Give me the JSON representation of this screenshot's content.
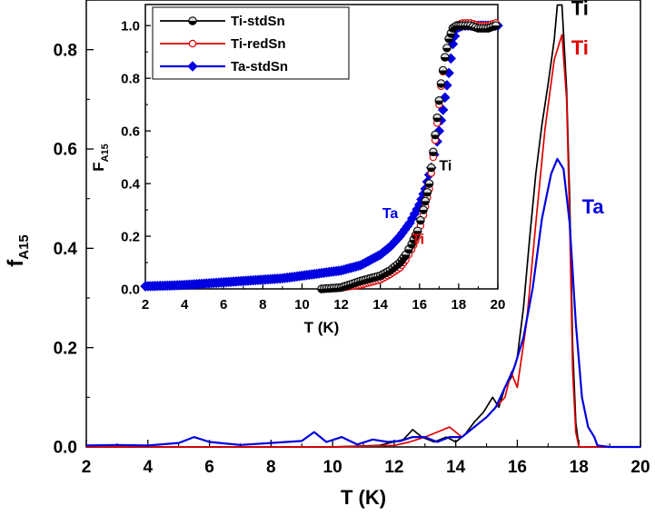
{
  "chart_data": [
    {
      "type": "line",
      "title": "",
      "xlabel": "T (K)",
      "ylabel_main": "f",
      "ylabel_sub": "A15",
      "xlim": [
        2,
        20
      ],
      "ylim": [
        0,
        0.9
      ],
      "xticks": [
        2,
        4,
        6,
        8,
        10,
        12,
        14,
        16,
        18,
        20
      ],
      "yticks": [
        0.0,
        0.2,
        0.4,
        0.6,
        0.8
      ],
      "ytick_labels": [
        "0.0",
        "0.2",
        "0.4",
        "0.6",
        "0.8"
      ],
      "series": [
        {
          "name": "Ti-stdSn",
          "color": "#000000",
          "x": [
            2,
            6,
            10,
            11.5,
            12.3,
            12.6,
            12.9,
            13.3,
            13.7,
            14.0,
            14.3,
            14.6,
            14.9,
            15.2,
            15.4,
            15.6,
            15.8,
            16.0,
            16.2,
            16.4,
            16.6,
            16.8,
            17.0,
            17.2,
            17.3,
            17.45,
            17.6,
            17.7,
            17.8,
            17.9,
            18.0,
            18.5,
            20
          ],
          "y": [
            0,
            0,
            0,
            0.003,
            0.015,
            0.035,
            0.02,
            0.01,
            0.02,
            0.01,
            0.025,
            0.05,
            0.07,
            0.1,
            0.08,
            0.12,
            0.14,
            0.18,
            0.28,
            0.42,
            0.55,
            0.65,
            0.73,
            0.82,
            0.89,
            0.89,
            0.72,
            0.5,
            0.2,
            0.05,
            0.0,
            0.0,
            0.0
          ]
        },
        {
          "name": "Ti-redSn",
          "color": "#e00000",
          "x": [
            2,
            6,
            10,
            12.0,
            12.5,
            13.0,
            13.4,
            13.8,
            14.2,
            14.6,
            15.0,
            15.3,
            15.6,
            15.8,
            16.0,
            16.3,
            16.6,
            16.9,
            17.2,
            17.45,
            17.6,
            17.7,
            17.8,
            17.9,
            18.0,
            18.5,
            20
          ],
          "y": [
            0,
            0,
            0,
            0.003,
            0.01,
            0.02,
            0.03,
            0.04,
            0.02,
            0.04,
            0.06,
            0.08,
            0.1,
            0.15,
            0.12,
            0.25,
            0.45,
            0.64,
            0.78,
            0.83,
            0.7,
            0.45,
            0.15,
            0.03,
            0.0,
            0.0,
            0.0
          ]
        },
        {
          "name": "Ta-stdSn",
          "color": "#0000e0",
          "x": [
            2,
            3,
            4,
            5,
            5.5,
            6,
            7,
            8,
            9,
            9.4,
            9.8,
            10.3,
            10.8,
            11.3,
            11.8,
            12.2,
            12.6,
            13.0,
            13.4,
            13.8,
            14.2,
            14.6,
            15.0,
            15.3,
            15.6,
            15.9,
            16.2,
            16.5,
            16.8,
            17.1,
            17.3,
            17.5,
            17.7,
            17.9,
            18.1,
            18.3,
            18.5,
            18.6,
            19.0,
            20
          ],
          "y": [
            0.003,
            0.004,
            0.003,
            0.008,
            0.02,
            0.01,
            0.004,
            0.008,
            0.012,
            0.03,
            0.01,
            0.02,
            0.005,
            0.015,
            0.01,
            0.012,
            0.02,
            0.02,
            0.01,
            0.02,
            0.02,
            0.04,
            0.06,
            0.08,
            0.12,
            0.16,
            0.22,
            0.32,
            0.46,
            0.55,
            0.58,
            0.56,
            0.45,
            0.25,
            0.1,
            0.04,
            0.02,
            0.003,
            0.0,
            0.0
          ]
        }
      ],
      "annotations": [
        {
          "text": "Ti",
          "color": "#000000",
          "x": 17.75,
          "y": 0.87
        },
        {
          "text": "Ti",
          "color": "#e00000",
          "x": 17.75,
          "y": 0.79
        },
        {
          "text": "Ta",
          "color": "#0000e0",
          "x": 18.1,
          "y": 0.47
        }
      ]
    },
    {
      "type": "scatter",
      "title": "",
      "xlabel": "T (K)",
      "ylabel_main": "F",
      "ylabel_sub": "A15",
      "xlim": [
        2,
        20
      ],
      "ylim": [
        0,
        1.08
      ],
      "xticks": [
        2,
        4,
        6,
        8,
        10,
        12,
        14,
        16,
        18,
        20
      ],
      "yticks": [
        0.0,
        0.2,
        0.4,
        0.6,
        0.8,
        1.0
      ],
      "ytick_labels": [
        "0.0",
        "0.2",
        "0.4",
        "0.6",
        "0.8",
        "1.0"
      ],
      "legend": "top-left",
      "series": [
        {
          "name": "Ti-stdSn",
          "color": "#000000",
          "marker": "half-filled-circle",
          "x": [
            11.0,
            12.0,
            12.6,
            13.0,
            13.5,
            14.0,
            14.5,
            15.0,
            15.3,
            15.6,
            15.9,
            16.2,
            16.5,
            16.7,
            16.9,
            17.1,
            17.3,
            17.5,
            17.7,
            17.9,
            18.2,
            18.6,
            19.0,
            19.5,
            19.9
          ],
          "y": [
            0.0,
            0.005,
            0.02,
            0.03,
            0.04,
            0.05,
            0.07,
            0.1,
            0.13,
            0.17,
            0.22,
            0.3,
            0.4,
            0.52,
            0.65,
            0.78,
            0.88,
            0.95,
            0.99,
            1.0,
            1.0,
            1.0,
            0.99,
            0.99,
            1.0
          ]
        },
        {
          "name": "Ti-redSn",
          "color": "#e00000",
          "marker": "open-circle",
          "x": [
            11.0,
            12.0,
            12.5,
            13.0,
            13.5,
            14.0,
            14.5,
            15.0,
            15.3,
            15.6,
            15.9,
            16.2,
            16.5,
            16.7,
            16.9,
            17.1,
            17.3,
            17.5,
            17.7,
            17.9,
            18.2,
            18.6,
            19.0,
            19.5,
            19.9
          ],
          "y": [
            0.0,
            0.004,
            0.01,
            0.015,
            0.025,
            0.035,
            0.055,
            0.08,
            0.11,
            0.15,
            0.2,
            0.28,
            0.38,
            0.5,
            0.63,
            0.77,
            0.88,
            0.95,
            0.99,
            1.0,
            1.01,
            1.01,
            1.0,
            1.0,
            1.01
          ]
        },
        {
          "name": "Ta-stdSn",
          "color": "#0000e0",
          "marker": "filled-diamond",
          "x": [
            2,
            3,
            4,
            5,
            6,
            7,
            8,
            9,
            10,
            11,
            12,
            12.5,
            13,
            13.5,
            14,
            14.5,
            15,
            15.5,
            16,
            16.3,
            16.6,
            16.9,
            17.2,
            17.5,
            17.7,
            17.9,
            18.2,
            18.6,
            19.0,
            19.5,
            20
          ],
          "y": [
            0.01,
            0.012,
            0.015,
            0.02,
            0.025,
            0.03,
            0.035,
            0.04,
            0.05,
            0.06,
            0.07,
            0.08,
            0.09,
            0.11,
            0.13,
            0.16,
            0.2,
            0.25,
            0.32,
            0.38,
            0.46,
            0.56,
            0.68,
            0.82,
            0.93,
            0.99,
            1.0,
            1.0,
            1.0,
            1.0,
            1.0
          ]
        }
      ],
      "annotations": [
        {
          "text": "Ti",
          "color": "#000000",
          "x": 17.0,
          "y": 0.45
        },
        {
          "text": "Ta",
          "color": "#0000e0",
          "x": 14.1,
          "y": 0.27
        },
        {
          "text": "Ti",
          "color": "#e00000",
          "x": 15.6,
          "y": 0.17
        }
      ]
    }
  ]
}
